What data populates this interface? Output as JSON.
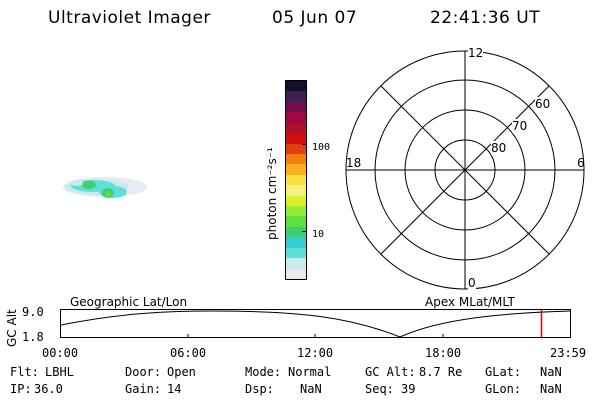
{
  "header": {
    "instrument": "Ultraviolet Imager",
    "date": "05 Jun 07",
    "time": "22:41:36 UT"
  },
  "colorbar": {
    "label": "photon cm⁻²s⁻¹",
    "ticks": [
      "100",
      "10"
    ],
    "colors": [
      "#e8ecf0",
      "#c8ecec",
      "#5ee0d8",
      "#30d0d0",
      "#3cd070",
      "#60e040",
      "#98ec30",
      "#d8f030",
      "#f8f080",
      "#f8e040",
      "#f8b020",
      "#f08010",
      "#e04010",
      "#d01010",
      "#b01030",
      "#a00840",
      "#70104a",
      "#402050",
      "#101028"
    ]
  },
  "polar_plot": {
    "mlt_labels": {
      "top": "12",
      "left": "18",
      "right": "6",
      "bottom": "0"
    },
    "lat_labels": [
      "60",
      "70",
      "80"
    ]
  },
  "timeline": {
    "left_label": "Geographic Lat/Lon",
    "right_label": "Apex MLat/MLT",
    "ylabel": "GC Alt",
    "y_ticks": [
      "9.0",
      "1.8"
    ],
    "x_ticks": [
      "00:00",
      "06:00",
      "12:00",
      "18:00",
      "23:59"
    ],
    "current_time_fraction": 0.944,
    "marker_color": "#e00000"
  },
  "info": {
    "row1": [
      {
        "label": "Flt:",
        "value": "LBHL"
      },
      {
        "label": "Door:",
        "value": "Open"
      },
      {
        "label": "Mode:",
        "value": "Normal"
      },
      {
        "label": "GC Alt:",
        "value": "8.7 Re"
      },
      {
        "label": "GLat:",
        "value": "NaN"
      }
    ],
    "row2": [
      {
        "label": "IP:",
        "value": "36.0"
      },
      {
        "label": "Gain:",
        "value": "14"
      },
      {
        "label": "Dsp:",
        "value": "NaN"
      },
      {
        "label": "Seq:",
        "value": "39"
      },
      {
        "label": "GLon:",
        "value": "NaN"
      }
    ]
  }
}
